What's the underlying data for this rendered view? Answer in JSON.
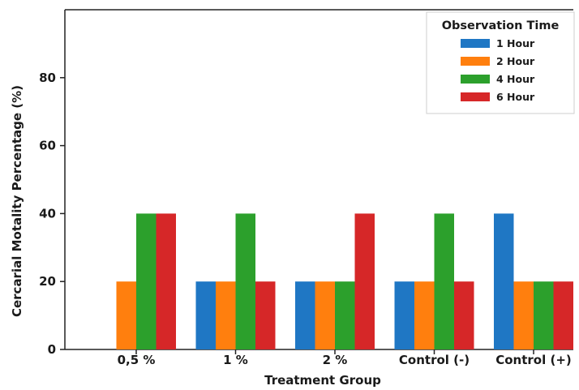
{
  "chart_data": {
    "type": "bar",
    "title": "",
    "xlabel": "Treatment Group",
    "ylabel": "Cercarial Motality Percentage (%)",
    "categories": [
      "0,5 %",
      "1 %",
      "2 %",
      "Control (-)",
      "Control (+)"
    ],
    "series": [
      {
        "name": "1 Hour",
        "color": "#1f77c4",
        "values": [
          0,
          20,
          20,
          20,
          40
        ]
      },
      {
        "name": "2 Hour",
        "color": "#ff7f0e",
        "values": [
          20,
          20,
          20,
          20,
          20
        ]
      },
      {
        "name": "4 Hour",
        "color": "#2ca02c",
        "values": [
          40,
          40,
          20,
          40,
          20
        ]
      },
      {
        "name": "6 Hour",
        "color": "#d62728",
        "values": [
          40,
          20,
          40,
          20,
          20
        ]
      }
    ],
    "ylim": [
      0,
      100
    ],
    "yticks": [
      0,
      20,
      40,
      60,
      80
    ],
    "grid": false,
    "legend": {
      "title": "Observation Time",
      "position": "top-right"
    }
  }
}
